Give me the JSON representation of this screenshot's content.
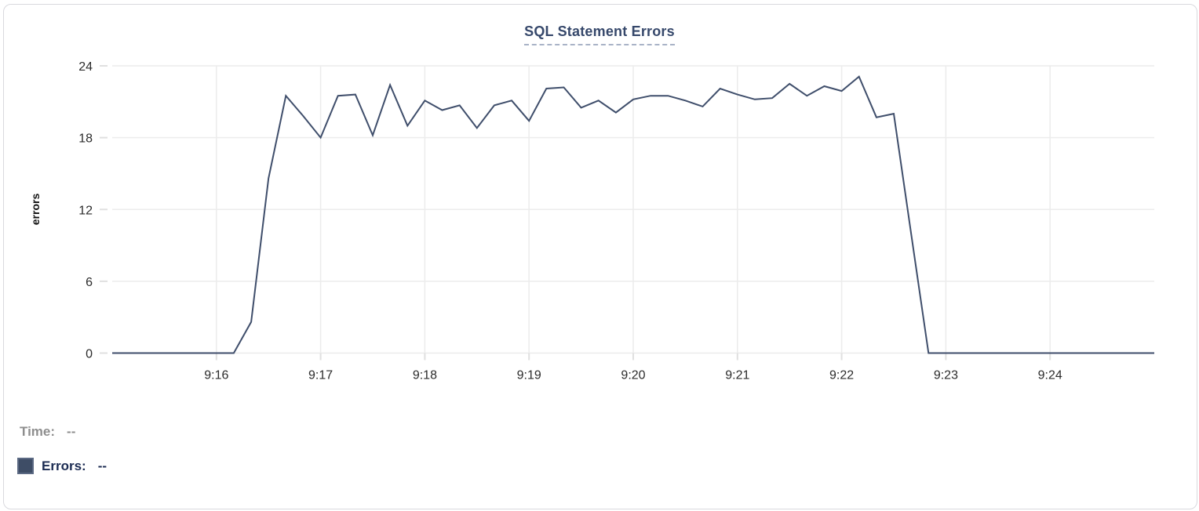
{
  "legend": {
    "time_label": "Time:",
    "time_value": "--",
    "errors_label": "Errors:",
    "errors_value": "--",
    "swatch_color": "#3e4d66"
  },
  "chart_data": {
    "type": "line",
    "title": "SQL Statement Errors",
    "xlabel": "",
    "ylabel": "errors",
    "ylim": [
      0,
      24
    ],
    "yticks": [
      0,
      6,
      12,
      18,
      24
    ],
    "xticks": [
      "9:16",
      "9:17",
      "9:18",
      "9:19",
      "9:20",
      "9:21",
      "9:22",
      "9:23",
      "9:24"
    ],
    "grid": true,
    "legend_position": "bottom-left",
    "series_name": "Errors",
    "x": [
      "9:15:00",
      "9:15:10",
      "9:15:20",
      "9:15:30",
      "9:15:40",
      "9:15:50",
      "9:16:00",
      "9:16:10",
      "9:16:20",
      "9:16:30",
      "9:16:40",
      "9:16:50",
      "9:17:00",
      "9:17:10",
      "9:17:20",
      "9:17:30",
      "9:17:40",
      "9:17:50",
      "9:18:00",
      "9:18:10",
      "9:18:20",
      "9:18:30",
      "9:18:40",
      "9:18:50",
      "9:19:00",
      "9:19:10",
      "9:19:20",
      "9:19:30",
      "9:19:40",
      "9:19:50",
      "9:20:00",
      "9:20:10",
      "9:20:20",
      "9:20:30",
      "9:20:40",
      "9:20:50",
      "9:21:00",
      "9:21:10",
      "9:21:20",
      "9:21:30",
      "9:21:40",
      "9:21:50",
      "9:22:00",
      "9:22:10",
      "9:22:20",
      "9:22:30",
      "9:22:40",
      "9:22:50",
      "9:23:00",
      "9:23:10",
      "9:23:20",
      "9:23:30",
      "9:23:40",
      "9:23:50",
      "9:24:00",
      "9:24:10",
      "9:24:20",
      "9:24:30",
      "9:24:40",
      "9:24:50",
      "9:25:00"
    ],
    "values": [
      0,
      0,
      0,
      0,
      0,
      0,
      0,
      0,
      2.6,
      14.6,
      21.5,
      19.8,
      18,
      21.5,
      21.6,
      18.2,
      22.4,
      19,
      21.1,
      20.3,
      20.7,
      18.8,
      20.7,
      21.1,
      19.4,
      22.1,
      22.2,
      20.5,
      21.1,
      20.1,
      21.2,
      21.5,
      21.5,
      21.1,
      20.6,
      22.1,
      21.6,
      21.2,
      21.3,
      22.5,
      21.5,
      22.3,
      21.9,
      23.1,
      19.7,
      20,
      10,
      0,
      0,
      0,
      0,
      0,
      0,
      0,
      0,
      0,
      0,
      0,
      0,
      0,
      0
    ],
    "colors": {
      "line": "#3f4e6b",
      "grid": "#ececec",
      "tick": "#e0e0e0",
      "tick_label": "#2b2b2b",
      "title": "#36486b"
    }
  }
}
